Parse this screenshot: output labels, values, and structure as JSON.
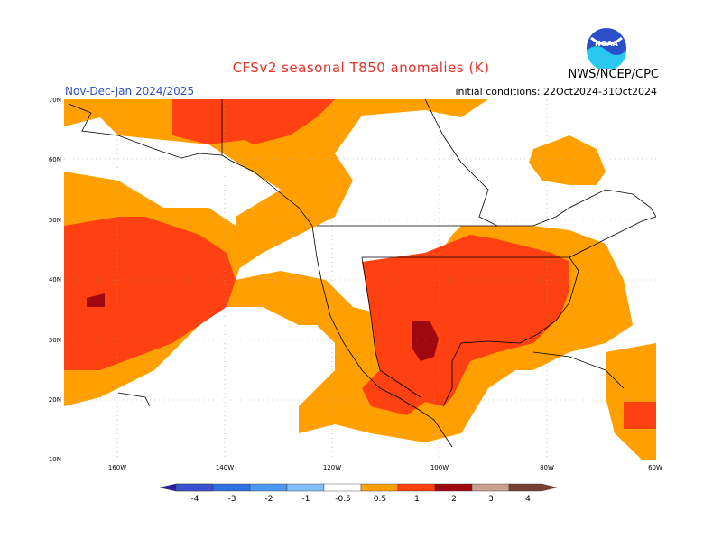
{
  "title": "CFSv2 seasonal T850 anomalies (K)",
  "period": "Nov-Dec-Jan 2024/2025",
  "initial_conditions": "initial conditions: 22Oct2024-31Oct2024",
  "agency": "NWS/NCEP/CPC",
  "logo_text": "NOAA",
  "lat_labels": [
    "70N",
    "60N",
    "50N",
    "40N",
    "30N",
    "20N",
    "10N"
  ],
  "lon_labels": [
    "160W",
    "140W",
    "120W",
    "100W",
    "80W",
    "60W"
  ],
  "colorbar": {
    "labels": [
      "-4",
      "-3",
      "-2",
      "-1",
      "-0.5",
      "0.5",
      "1",
      "2",
      "3",
      "4"
    ],
    "colors": [
      "#2a1ea0",
      "#3a50d0",
      "#3070e0",
      "#4a98f0",
      "#80bff8",
      "#ffffff",
      "#ffa000",
      "#ff4010",
      "#a00810",
      "#c8a090",
      "#784030"
    ]
  },
  "colors": {
    "anom_0_5_1": "#ffa000",
    "anom_1_2": "#ff4010",
    "anom_2_3": "#a00810",
    "coastline": "#000000",
    "title": "#e8302a",
    "period": "#3050c0"
  }
}
